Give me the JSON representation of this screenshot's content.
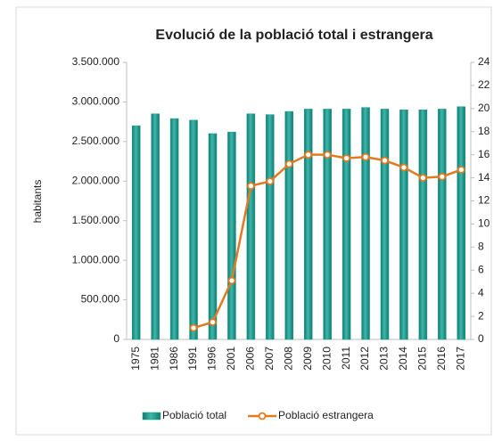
{
  "chart_data": {
    "type": "bar",
    "title": "Evolució de la població total i estrangera",
    "ylabel": "habitants",
    "categories": [
      "1975",
      "1981",
      "1986",
      "1991",
      "1996",
      "2001",
      "2006",
      "2007",
      "2008",
      "2009",
      "2010",
      "2011",
      "2012",
      "2013",
      "2014",
      "2015",
      "2016",
      "2017"
    ],
    "series": [
      {
        "name": "Població total",
        "type": "bar",
        "color": "#1f9a8e",
        "values": [
          2700000,
          2850000,
          2790000,
          2770000,
          2600000,
          2620000,
          2850000,
          2840000,
          2880000,
          2910000,
          2910000,
          2910000,
          2930000,
          2910000,
          2900000,
          2900000,
          2910000,
          2940000
        ]
      },
      {
        "name": "Població estrangera",
        "type": "line",
        "axis": "y2",
        "color": "#e07b24",
        "values": [
          null,
          null,
          null,
          1.0,
          1.5,
          5.1,
          13.3,
          13.7,
          15.2,
          16.0,
          16.0,
          15.7,
          15.8,
          15.5,
          14.9,
          14.0,
          14.1,
          14.7
        ]
      }
    ],
    "ylim": [
      0,
      3500000
    ],
    "yticks": [
      0,
      {
        "value": 500000,
        "label": "500.000"
      },
      {
        "value": 1000000,
        "label": "1.000.000"
      },
      {
        "value": 1500000,
        "label": "1.500.000"
      },
      {
        "value": 2000000,
        "label": "2.000.000"
      },
      {
        "value": 2500000,
        "label": "2.500.000"
      },
      {
        "value": 3000000,
        "label": "3.000.000"
      },
      {
        "value": 3500000,
        "label": "3.500.000"
      }
    ],
    "y2lim": [
      0,
      24
    ],
    "y2ticks": [
      0,
      2,
      4,
      6,
      8,
      10,
      12,
      14,
      16,
      18,
      20,
      22,
      24
    ],
    "legend": "bottom"
  }
}
